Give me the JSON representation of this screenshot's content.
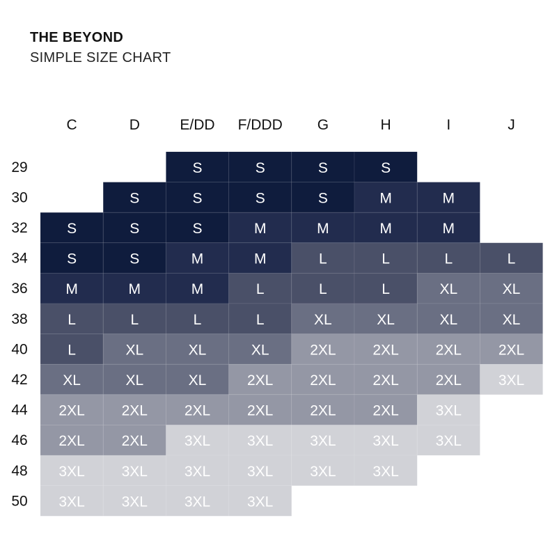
{
  "header": {
    "brand": "THE BEYOND",
    "subtitle": "SIMPLE SIZE CHART"
  },
  "chart_data": {
    "type": "table",
    "columns": [
      "C",
      "D",
      "E/DD",
      "F/DDD",
      "G",
      "H",
      "I",
      "J"
    ],
    "rows": [
      "29",
      "30",
      "32",
      "34",
      "36",
      "38",
      "40",
      "42",
      "44",
      "46",
      "48",
      "50"
    ],
    "cells": [
      [
        "",
        "",
        "S",
        "S",
        "S",
        "S",
        "",
        ""
      ],
      [
        "",
        "S",
        "S",
        "S",
        "S",
        "M",
        "M",
        ""
      ],
      [
        "S",
        "S",
        "S",
        "M",
        "M",
        "M",
        "M",
        ""
      ],
      [
        "S",
        "S",
        "M",
        "M",
        "L",
        "L",
        "L",
        "L"
      ],
      [
        "M",
        "M",
        "M",
        "L",
        "L",
        "L",
        "XL",
        "XL"
      ],
      [
        "L",
        "L",
        "L",
        "L",
        "XL",
        "XL",
        "XL",
        "XL"
      ],
      [
        "L",
        "XL",
        "XL",
        "XL",
        "2XL",
        "2XL",
        "2XL",
        "2XL"
      ],
      [
        "XL",
        "XL",
        "XL",
        "2XL",
        "2XL",
        "2XL",
        "2XL",
        "3XL"
      ],
      [
        "2XL",
        "2XL",
        "2XL",
        "2XL",
        "2XL",
        "2XL",
        "3XL",
        ""
      ],
      [
        "2XL",
        "2XL",
        "3XL",
        "3XL",
        "3XL",
        "3XL",
        "3XL",
        ""
      ],
      [
        "3XL",
        "3XL",
        "3XL",
        "3XL",
        "3XL",
        "3XL",
        "",
        ""
      ],
      [
        "3XL",
        "3XL",
        "3XL",
        "3XL",
        "",
        "",
        "",
        ""
      ]
    ],
    "size_colors": {
      "S": "#0f1c3d",
      "M": "#222c4e",
      "L": "#4a5068",
      "XL": "#6a6f83",
      "2XL": "#9497a5",
      "3XL": "#d1d2d7"
    }
  }
}
